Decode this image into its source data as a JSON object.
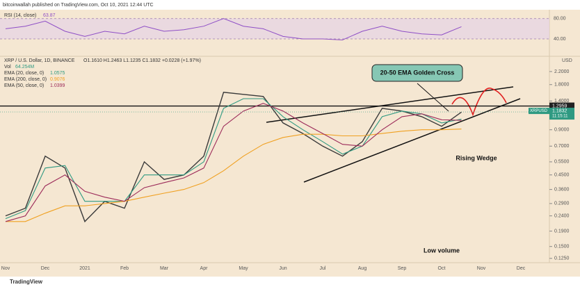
{
  "chart_data": {
    "type": "line",
    "header": "bitcoinwallah published on TradingView.com, Oct 10, 2021 12:44 UTC",
    "symbol": "XRP / U.S. Dollar, 1D, BINANCE",
    "ohlc": "O1.1610 H1.2463 L1.1235 C1.1832 +0.0228 (+1.97%)",
    "volume_label": "Vol",
    "volume_value": "64.254M",
    "currency": "USD",
    "footer": "TradingView",
    "log_scale": true,
    "categories": [
      "Nov",
      null,
      "Dec",
      null,
      "2021",
      null,
      "Feb",
      null,
      "Mar",
      null,
      "Apr",
      null,
      "May",
      null,
      "Jun",
      null,
      "Jul",
      null,
      "Aug",
      null,
      "Sep",
      null,
      "Oct",
      null,
      "Nov",
      null,
      "Dec",
      null
    ],
    "ylim": [
      0.117,
      2.58
    ],
    "yticks": [
      {
        "value": 0.125,
        "label": "0.1250"
      },
      {
        "value": 0.15,
        "label": "0.1500"
      },
      {
        "value": 0.19,
        "label": "0.1900"
      },
      {
        "value": 0.24,
        "label": "0.2400"
      },
      {
        "value": 0.29,
        "label": "0.2900"
      },
      {
        "value": 0.36,
        "label": "0.3600"
      },
      {
        "value": 0.45,
        "label": "0.4500"
      },
      {
        "value": 0.55,
        "label": "0.5500"
      },
      {
        "value": 0.7,
        "label": "0.7000"
      },
      {
        "value": 0.9,
        "label": "0.9000"
      },
      {
        "value": 1.1,
        "label": "1.1000"
      },
      {
        "value": 1.4,
        "label": "1.4000"
      },
      {
        "value": 1.8,
        "label": "1.8000"
      },
      {
        "value": 2.2,
        "label": "2.2000"
      }
    ],
    "series": [
      {
        "name": "XRPUSD",
        "color": "#3a3a3a",
        "values": [
          0.24,
          0.27,
          0.6,
          0.5,
          0.22,
          0.3,
          0.27,
          0.55,
          0.42,
          0.45,
          0.6,
          1.6,
          1.55,
          1.5,
          1.0,
          0.85,
          0.7,
          0.6,
          0.75,
          1.25,
          1.2,
          1.1,
          0.95,
          1.18,
          null,
          null,
          null,
          null
        ]
      },
      {
        "name": "EMA (20, close, 0)",
        "legend_value": "1.0575",
        "color": "#2f9a82",
        "values": [
          0.23,
          0.26,
          0.5,
          0.52,
          0.3,
          0.3,
          0.3,
          0.45,
          0.45,
          0.45,
          0.55,
          1.25,
          1.45,
          1.45,
          1.1,
          0.9,
          0.75,
          0.62,
          0.7,
          1.1,
          1.2,
          1.15,
          1.0,
          1.06,
          null,
          null,
          null,
          null
        ]
      },
      {
        "name": "EMA (200, close, 0)",
        "legend_value": "0.9076",
        "color": "#f0a020",
        "values": [
          0.22,
          0.22,
          0.25,
          0.28,
          0.28,
          0.29,
          0.3,
          0.32,
          0.34,
          0.36,
          0.4,
          0.48,
          0.6,
          0.72,
          0.8,
          0.84,
          0.84,
          0.82,
          0.82,
          0.85,
          0.88,
          0.9,
          0.9,
          0.91,
          null,
          null,
          null,
          null
        ]
      },
      {
        "name": "EMA (50, close, 0)",
        "legend_value": "1.0399",
        "color": "#9c2a59",
        "values": [
          0.22,
          0.24,
          0.38,
          0.45,
          0.35,
          0.32,
          0.3,
          0.37,
          0.4,
          0.43,
          0.5,
          0.95,
          1.2,
          1.35,
          1.2,
          1.0,
          0.85,
          0.72,
          0.7,
          0.9,
          1.1,
          1.15,
          1.05,
          1.04,
          null,
          null,
          null,
          null
        ]
      }
    ],
    "last_price": {
      "value": 1.1832,
      "label": "1.1832",
      "time": "11:15:11"
    },
    "hline": {
      "value": 1.2959,
      "label": "1.2959"
    },
    "rsi": {
      "name": "RSI (14, close)",
      "value_label": "63.87",
      "color": "#8e4ec6",
      "ylim": [
        10,
        96
      ],
      "yticks": [
        {
          "value": 80,
          "label": "80.00"
        },
        {
          "value": 40,
          "label": "40.00"
        }
      ],
      "values": [
        60,
        65,
        75,
        55,
        45,
        55,
        50,
        65,
        55,
        58,
        65,
        80,
        65,
        60,
        45,
        40,
        40,
        38,
        55,
        65,
        55,
        50,
        48,
        64,
        null,
        null,
        null,
        null
      ]
    },
    "annotations": [
      "20-50 EMA Golden Cross",
      "Rising Wedge",
      "Low volume"
    ]
  }
}
